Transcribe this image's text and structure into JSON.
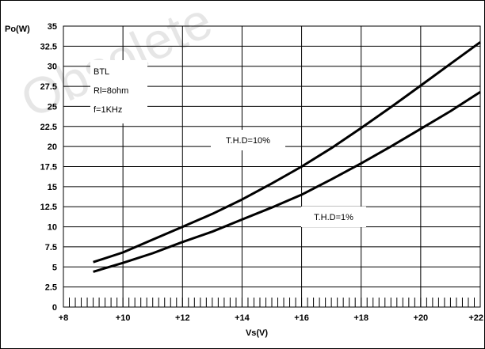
{
  "watermark": "Obsolete",
  "chart_data": {
    "type": "line",
    "xlabel": "Vs(V)",
    "ylabel": "Po(W)",
    "xlim": [
      8,
      22
    ],
    "ylim": [
      0,
      35
    ],
    "x_tick_labels": [
      "+8",
      "+10",
      "+12",
      "+14",
      "+16",
      "+18",
      "+20",
      "+22"
    ],
    "y_tick_labels": [
      "0",
      "2.5",
      "5",
      "7.5",
      "10",
      "12.5",
      "15",
      "17.5",
      "20",
      "22.5",
      "25",
      "27.5",
      "30",
      "32.5",
      "35"
    ],
    "grid": true,
    "conditions": [
      "BTL",
      "Rl=8ohm",
      "f=1KHz"
    ],
    "series": [
      {
        "name": "T.H.D=10%",
        "x": [
          9,
          10,
          11,
          12,
          13,
          14,
          15,
          16,
          17,
          18,
          19,
          20,
          21,
          22
        ],
        "y": [
          5.6,
          6.8,
          8.4,
          10.0,
          11.6,
          13.4,
          15.4,
          17.5,
          19.8,
          22.3,
          24.9,
          27.6,
          30.3,
          33.0
        ]
      },
      {
        "name": "T.H.D=1%",
        "x": [
          9,
          10,
          11,
          12,
          13,
          14,
          15,
          16,
          17,
          18,
          19,
          20,
          21,
          22
        ],
        "y": [
          4.4,
          5.5,
          6.7,
          8.1,
          9.4,
          10.9,
          12.4,
          14.0,
          15.9,
          17.9,
          20.0,
          22.2,
          24.4,
          26.8
        ]
      }
    ]
  }
}
